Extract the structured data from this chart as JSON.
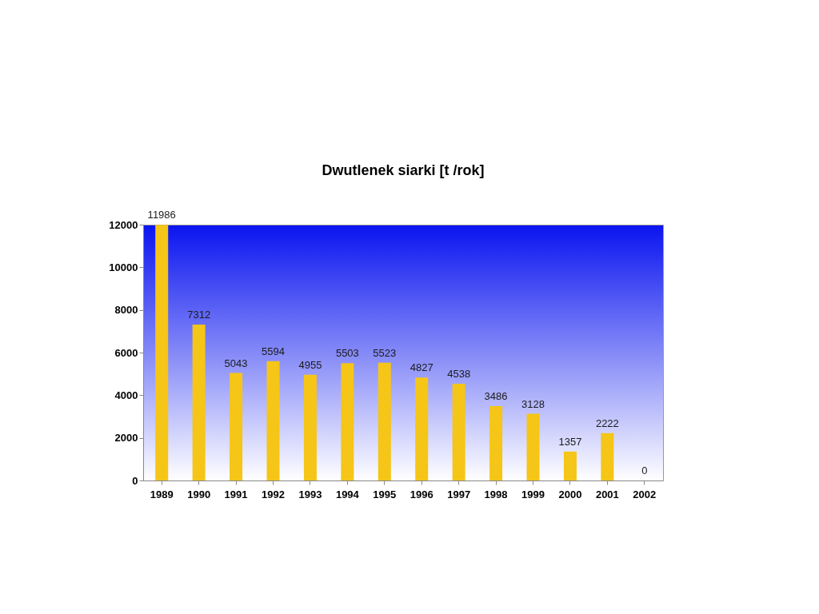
{
  "chart_data": {
    "type": "bar",
    "title": "Dwutlenek siarki [t /rok]",
    "categories": [
      "1989",
      "1990",
      "1991",
      "1992",
      "1993",
      "1994",
      "1995",
      "1996",
      "1997",
      "1998",
      "1999",
      "2000",
      "2001",
      "2002"
    ],
    "values": [
      11986,
      7312,
      5043,
      5594,
      4955,
      5503,
      5523,
      4827,
      4538,
      3486,
      3128,
      1357,
      2222,
      0
    ],
    "color": "#f5c518",
    "ylim": [
      0,
      12000
    ],
    "yticks": [
      0,
      2000,
      4000,
      6000,
      8000,
      10000,
      12000
    ],
    "data_labels": true
  }
}
